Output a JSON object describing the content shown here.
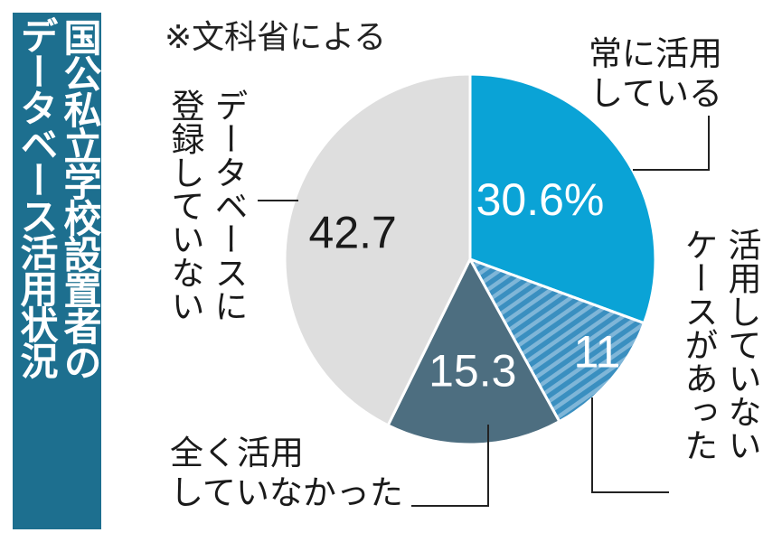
{
  "header": {
    "title_line1": "国公私立学校設置者の",
    "title_line2": "データベース活用状況",
    "source": "※文科省による"
  },
  "colors": {
    "title_bg": "#1d6f8f",
    "always": "#0aa3d6",
    "cases_not": "#3a8fc0",
    "cases_not_stripe": "#7fb6d8",
    "never": "#4d6e80",
    "unregistered": "#dedede"
  },
  "chart_data": {
    "type": "pie",
    "unit": "%",
    "categories": [
      "常に活用している",
      "活用していないケースがあった",
      "全く活用していなかった",
      "データベースに登録していない"
    ],
    "values": [
      30.6,
      11.4,
      15.3,
      42.7
    ],
    "value_labels": [
      "30.6%",
      "11.4",
      "15.3",
      "42.7"
    ],
    "label_lines": [
      [
        "常に活用",
        "している"
      ],
      [
        "活用していない",
        "ケースがあった"
      ],
      [
        "全く活用",
        "していなかった"
      ],
      [
        "データベースに",
        "登録していない"
      ]
    ]
  }
}
